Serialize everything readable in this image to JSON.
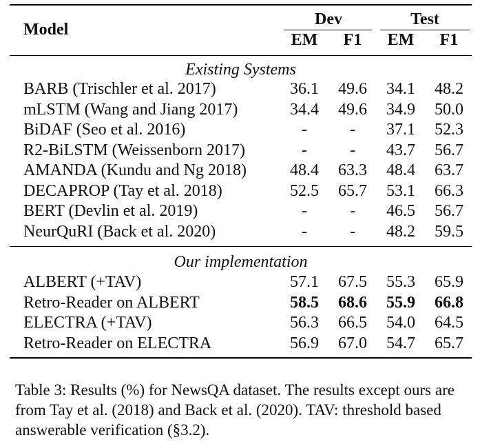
{
  "table": {
    "header": {
      "model": "Model",
      "dev": "Dev",
      "test": "Test",
      "em": "EM",
      "f1": "F1"
    },
    "sections": [
      {
        "title": "Existing Systems",
        "rows": [
          {
            "model": "BARB (Trischler et al. 2017)",
            "dev_em": "36.1",
            "dev_f1": "49.6",
            "test_em": "34.1",
            "test_f1": "48.2"
          },
          {
            "model": "mLSTM (Wang and Jiang 2017)",
            "dev_em": "34.4",
            "dev_f1": "49.6",
            "test_em": "34.9",
            "test_f1": "50.0"
          },
          {
            "model": "BiDAF (Seo et al. 2016)",
            "dev_em": "-",
            "dev_f1": "-",
            "test_em": "37.1",
            "test_f1": "52.3"
          },
          {
            "model": "R2-BiLSTM (Weissenborn 2017)",
            "dev_em": "-",
            "dev_f1": "-",
            "test_em": "43.7",
            "test_f1": "56.7"
          },
          {
            "model": "AMANDA (Kundu and Ng 2018)",
            "dev_em": "48.4",
            "dev_f1": "63.3",
            "test_em": "48.4",
            "test_f1": "63.7"
          },
          {
            "model": "DECAPROP (Tay et al. 2018)",
            "dev_em": "52.5",
            "dev_f1": "65.7",
            "test_em": "53.1",
            "test_f1": "66.3"
          },
          {
            "model": "BERT (Devlin et al. 2019)",
            "dev_em": "-",
            "dev_f1": "-",
            "test_em": "46.5",
            "test_f1": "56.7"
          },
          {
            "model": "NeurQuRI (Back et al. 2020)",
            "dev_em": "-",
            "dev_f1": "-",
            "test_em": "48.2",
            "test_f1": "59.5"
          }
        ]
      },
      {
        "title": "Our implementation",
        "rows": [
          {
            "model": "ALBERT (+TAV)",
            "dev_em": "57.1",
            "dev_f1": "67.5",
            "test_em": "55.3",
            "test_f1": "65.9"
          },
          {
            "model": "Retro-Reader on ALBERT",
            "dev_em": "58.5",
            "dev_f1": "68.6",
            "test_em": "55.9",
            "test_f1": "66.8"
          },
          {
            "model": "ELECTRA (+TAV)",
            "dev_em": "56.3",
            "dev_f1": "66.5",
            "test_em": "54.0",
            "test_f1": "64.5"
          },
          {
            "model": "Retro-Reader on ELECTRA",
            "dev_em": "56.9",
            "dev_f1": "67.0",
            "test_em": "54.7",
            "test_f1": "65.7"
          }
        ]
      }
    ]
  },
  "caption": "Table 3: Results (%) for NewsQA dataset. The results except ours are from Tay et al. (2018) and Back et al. (2020). TAV: threshold based answerable verification (§3.2)."
}
